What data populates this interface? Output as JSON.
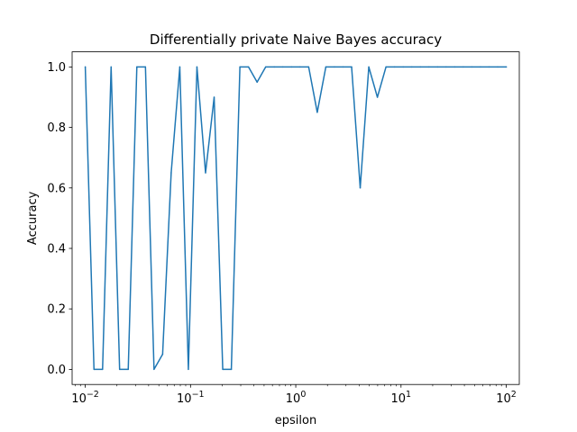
{
  "chart_data": {
    "type": "line",
    "title": "Differentially private Naive Bayes accuracy",
    "xlabel": "epsilon",
    "ylabel": "Accuracy",
    "x_scale": "log",
    "xlim": [
      0.0075,
      133
    ],
    "ylim": [
      -0.05,
      1.05
    ],
    "grid": false,
    "color": "#1f77b4",
    "x_ticks": [
      {
        "value": 0.01,
        "base": "10",
        "exp": "−2"
      },
      {
        "value": 0.1,
        "base": "10",
        "exp": "−1"
      },
      {
        "value": 1,
        "base": "10",
        "exp": "0"
      },
      {
        "value": 10,
        "base": "10",
        "exp": "1"
      },
      {
        "value": 100,
        "base": "10",
        "exp": "2"
      }
    ],
    "y_ticks": [
      {
        "value": 0.0,
        "label": "0.0"
      },
      {
        "value": 0.2,
        "label": "0.2"
      },
      {
        "value": 0.4,
        "label": "0.4"
      },
      {
        "value": 0.6,
        "label": "0.6"
      },
      {
        "value": 0.8,
        "label": "0.8"
      },
      {
        "value": 1.0,
        "label": "1.0"
      }
    ],
    "x": [
      0.01,
      0.0121,
      0.0146,
      0.0176,
      0.0212,
      0.0256,
      0.0309,
      0.0373,
      0.045,
      0.0543,
      0.0655,
      0.0791,
      0.0954,
      0.1151,
      0.1389,
      0.1677,
      0.2024,
      0.2442,
      0.2947,
      0.3556,
      0.4292,
      0.5179,
      0.6251,
      0.7543,
      0.9103,
      1.0985,
      1.3257,
      1.5999,
      1.9307,
      2.33,
      2.8118,
      3.3932,
      4.0949,
      4.9417,
      5.9636,
      7.1969,
      8.6851,
      10.48,
      12.65,
      15.26,
      18.42,
      22.23,
      26.83,
      32.37,
      39.07,
      47.15,
      56.9,
      68.66,
      82.86,
      100
    ],
    "y": [
      1.0,
      0.0,
      0.0,
      1.0,
      0.0,
      0.0,
      1.0,
      1.0,
      0.0,
      0.05,
      0.65,
      1.0,
      0.0,
      1.0,
      0.65,
      0.9,
      0.0,
      0.0,
      1.0,
      1.0,
      0.95,
      1.0,
      1.0,
      1.0,
      1.0,
      1.0,
      1.0,
      0.85,
      1.0,
      1.0,
      1.0,
      1.0,
      0.6,
      1.0,
      0.9,
      1.0,
      1.0,
      1.0,
      1.0,
      1.0,
      1.0,
      1.0,
      1.0,
      1.0,
      1.0,
      1.0,
      1.0,
      1.0,
      1.0,
      1.0
    ]
  }
}
